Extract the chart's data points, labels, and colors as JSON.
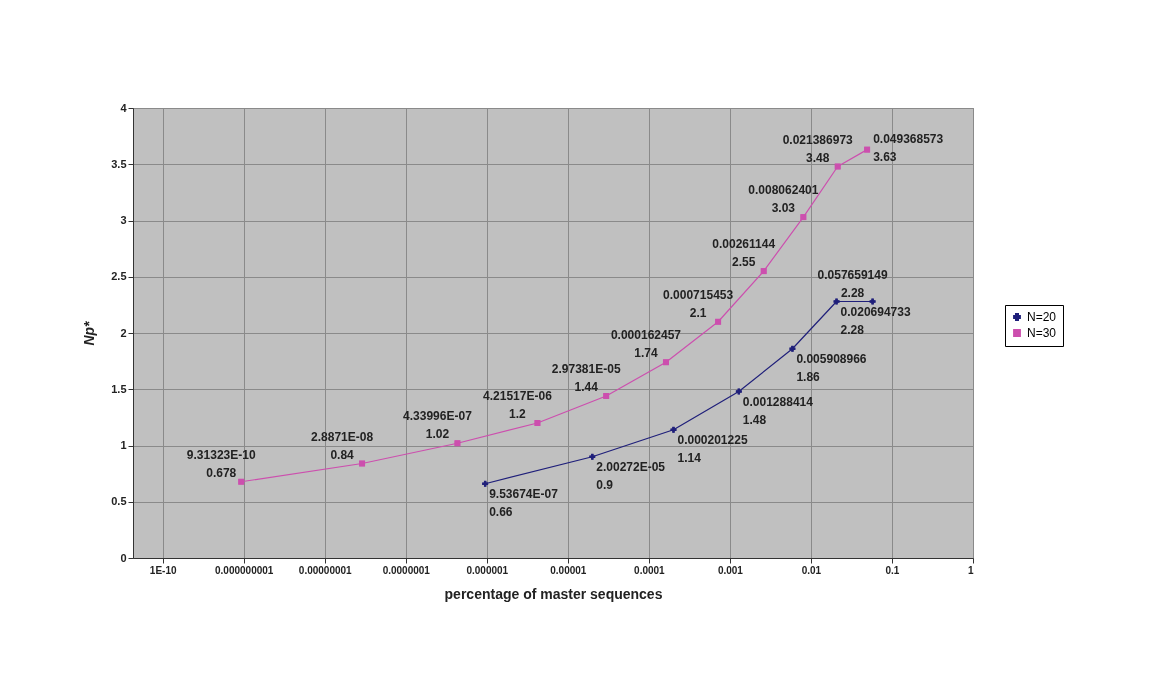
{
  "chart_data": {
    "type": "line",
    "xlabel": "percentage of master sequences",
    "ylabel": "Np*",
    "log": "x",
    "xlim": [
      4.3e-11,
      1
    ],
    "xticks": [
      {
        "value": 1e-10,
        "label": "1E-10"
      },
      {
        "value": 1e-09,
        "label": "0.000000001"
      },
      {
        "value": 1e-08,
        "label": "0.00000001"
      },
      {
        "value": 1e-07,
        "label": "0.0000001"
      },
      {
        "value": 1e-06,
        "label": "0.000001"
      },
      {
        "value": 1e-05,
        "label": "0.00001"
      },
      {
        "value": 0.0001,
        "label": "0.0001"
      },
      {
        "value": 0.001,
        "label": "0.001"
      },
      {
        "value": 0.01,
        "label": "0.01"
      },
      {
        "value": 0.1,
        "label": "0.1"
      },
      {
        "value": 1,
        "label": "1"
      }
    ],
    "ylim": [
      0,
      4
    ],
    "yticks": [
      0,
      0.5,
      1,
      1.5,
      2,
      2.5,
      3,
      3.5,
      4
    ],
    "grid": true,
    "legend": "right",
    "series": [
      {
        "name": "N=20",
        "color": "#1f1f7a",
        "marker": "cross",
        "x": [
          9.53674e-07,
          2.00272e-05,
          0.000201225,
          0.001288414,
          0.005908966,
          0.020694733,
          0.057659149
        ],
        "values": [
          0.66,
          0.9,
          1.14,
          1.48,
          1.86,
          2.28,
          2.28
        ],
        "value_labels": [
          "9.53674E-07\n0.66",
          "2.00272E-05\n0.9",
          "0.000201225\n1.14",
          "0.001288414\n1.48",
          "0.005908966\n1.86",
          "0.020694733\n2.28",
          "0.057659149\n2.28"
        ]
      },
      {
        "name": "N=30",
        "color": "#cc4fae",
        "marker": "square",
        "x": [
          9.31323e-10,
          2.8871e-08,
          4.33996e-07,
          4.21517e-06,
          2.97381e-05,
          0.000162457,
          0.000715453,
          0.00261144,
          0.008062401,
          0.021386973,
          0.049368573
        ],
        "values": [
          0.678,
          0.84,
          1.02,
          1.2,
          1.44,
          1.74,
          2.1,
          2.55,
          3.03,
          3.48,
          3.63
        ],
        "value_labels": [
          "9.31323E-10\n0.678",
          "2.8871E-08\n0.84",
          "4.33996E-07\n1.02",
          "4.21517E-06\n1.2",
          "2.97381E-05\n1.44",
          "0.000162457\n1.74",
          "0.000715453\n2.1",
          "0.00261144\n2.55",
          "0.008062401\n3.03",
          "0.021386973\n3.48",
          "0.049368573\n3.63"
        ]
      }
    ]
  }
}
